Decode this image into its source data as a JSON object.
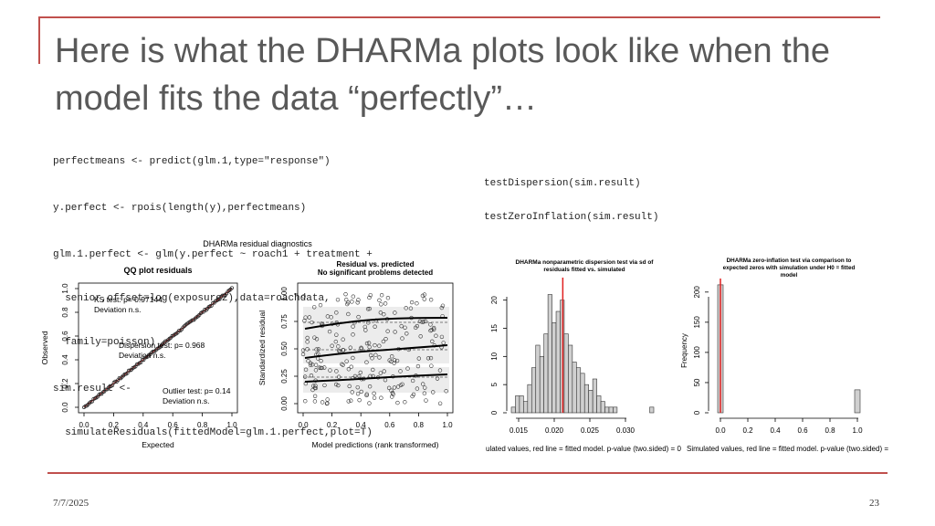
{
  "title": "Here is what the DHARMa plots look like when the model fits the data “perfectly”…",
  "code_left": [
    "perfectmeans <- predict(glm.1,type=\"response\")",
    "y.perfect <- rpois(length(y),perfectmeans)",
    "glm.1.perfect <- glm(y.perfect ~ roach1 + treatment +",
    "  senior,offset=log(exposure2),data=roachdata,",
    "  family=poisson)",
    "sim.result <-",
    "  simulateResiduals(fittedModel=glm.1.perfect,plot=T)"
  ],
  "code_right": [
    "testDispersion(sim.result)",
    "testZeroInflation(sim.result)"
  ],
  "figure": {
    "main_title": "DHARMa residual diagnostics",
    "qq": {
      "title": "QQ plot residuals",
      "xlabel": "Expected",
      "ylabel": "Observed",
      "ticks": [
        "0.0",
        "0.2",
        "0.4",
        "0.6",
        "0.8",
        "1.0"
      ],
      "ks_test": "KS test: p= 0.97144",
      "ks_dev": "Deviation n.s.",
      "disp_test": "Dispersion test: p= 0.968",
      "disp_dev": "Deviation n.s.",
      "out_test": "Outlier test: p= 0.14",
      "out_dev": "Deviation n.s."
    },
    "resid": {
      "title1": "Residual vs. predicted",
      "title2": "No significant problems detected",
      "xlabel": "Model predictions (rank transformed)",
      "ylabel": "Standardized residual",
      "xticks": [
        "0.0",
        "0.2",
        "0.4",
        "0.6",
        "0.8",
        "1.0"
      ],
      "yticks": [
        "0.00",
        "0.25",
        "0.50",
        "0.75",
        "1.00"
      ]
    },
    "disp": {
      "title1": "DHARMa nonparametric dispersion test via sd of",
      "title2": "residuals fitted vs. simulated",
      "xticks": [
        "0.015",
        "0.020",
        "0.025",
        "0.030"
      ],
      "yticks": [
        "0",
        "5",
        "10",
        "15",
        "20"
      ],
      "xlabel": "ulated values, red line = fitted model. p-value (two.sided) = 0",
      "counts": [
        1,
        3,
        3,
        2,
        5,
        8,
        12,
        10,
        14,
        21,
        16,
        18,
        20,
        14,
        12,
        9,
        8,
        7,
        5,
        4,
        6,
        3,
        2,
        1,
        1,
        1,
        0,
        0,
        0,
        0,
        0,
        0,
        0,
        0,
        1
      ],
      "observed": 0.0212
    },
    "zi": {
      "title1": "DHARMa zero-inflation test via comparison to",
      "title2": "expected zeros with simulation under H0 = fitted",
      "title3": "model",
      "ylabel": "Frequency",
      "xticks": [
        "0.0",
        "0.2",
        "0.4",
        "0.6",
        "0.8",
        "1.0"
      ],
      "yticks": [
        "0",
        "50",
        "100",
        "150",
        "200"
      ],
      "xlabel": "Simulated values, red line = fitted model. p-value (two.sided) = ",
      "bars": [
        {
          "x": 0.0,
          "count": 212
        },
        {
          "x": 1.0,
          "count": 38
        }
      ]
    }
  },
  "footer": {
    "date": "7/7/2025",
    "page": "23"
  },
  "colors": {
    "accent": "#c0504d",
    "red_line": "#e02020"
  }
}
